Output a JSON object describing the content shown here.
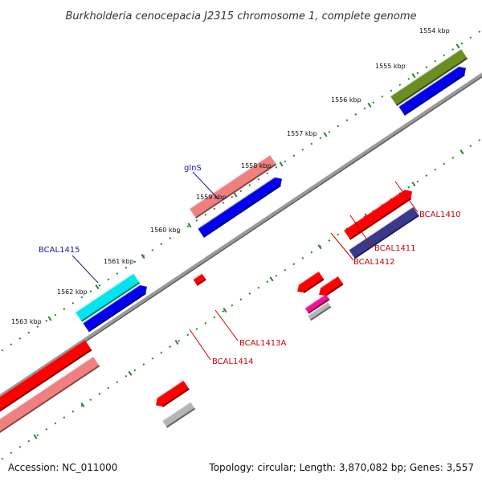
{
  "title": "Burkholderia cenocepacia J2315 chromosome 1, complete genome",
  "accession": "Accession: NC_011000",
  "summary": "Topology: circular; Length: 3,870,082 bp; Genes: 3,557",
  "colors": {
    "backbone": "#888888",
    "tick": "#2e7d32",
    "forward_label": "#1a1aa0",
    "reverse_label": "#cc0000",
    "cds": "#0000ee",
    "olive": "#6b8e23",
    "red": "#ff0000",
    "salmon": "#f08080",
    "cyan": "#00e5ee",
    "navy": "#3a3a8c",
    "magenta": "#ee1493",
    "gray": "#b5b5b5"
  },
  "scale_labels": [
    "1554 kbp",
    "1555 kbp",
    "1556 kbp",
    "1557 kbp",
    "1558 kbp",
    "1559 kbp",
    "1560 kbp",
    "1561 kbp",
    "1562 kbp",
    "1563 kbp"
  ],
  "gene_labels": [
    {
      "text": "glnS",
      "strand": "forward"
    },
    {
      "text": "BCAL1415",
      "strand": "forward"
    },
    {
      "text": "BCAL1410",
      "strand": "reverse"
    },
    {
      "text": "BCAL1411",
      "strand": "reverse"
    },
    {
      "text": "BCAL1412",
      "strand": "reverse"
    },
    {
      "text": "BCAL1413A",
      "strand": "reverse"
    },
    {
      "text": "BCAL1414",
      "strand": "reverse"
    }
  ]
}
